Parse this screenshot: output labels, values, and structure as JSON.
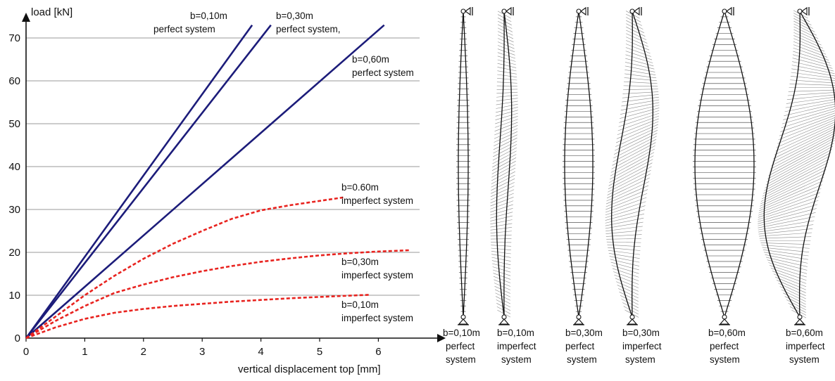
{
  "chart_data": {
    "type": "line",
    "xlabel": "vertical displacement top [mm]",
    "ylabel": "load [kN]",
    "xlim": [
      0,
      6.6
    ],
    "ylim": [
      0,
      75
    ],
    "x_ticks": [
      "0",
      "1",
      "2",
      "3",
      "4",
      "5",
      "6"
    ],
    "y_ticks": [
      "0",
      "10",
      "20",
      "30",
      "40",
      "50",
      "60",
      "70"
    ],
    "grid": "horizontal",
    "colors": {
      "perfect": "#1c1c7a",
      "imperfect": "#e8231f",
      "grid": "#9a9a9a"
    },
    "series": [
      {
        "key": "p010",
        "style": "solid",
        "points": [
          [
            0,
            0
          ],
          [
            3.85,
            73
          ]
        ]
      },
      {
        "key": "p030",
        "style": "solid",
        "points": [
          [
            0,
            0
          ],
          [
            4.17,
            73
          ]
        ]
      },
      {
        "key": "p060",
        "style": "solid",
        "points": [
          [
            0,
            0
          ],
          [
            6.1,
            73
          ]
        ]
      },
      {
        "key": "i060",
        "style": "dashed",
        "points": [
          [
            0,
            0
          ],
          [
            0.5,
            5
          ],
          [
            1.0,
            10
          ],
          [
            1.5,
            14.5
          ],
          [
            2.0,
            18.5
          ],
          [
            2.5,
            22
          ],
          [
            3.0,
            25
          ],
          [
            3.5,
            27.8
          ],
          [
            4.0,
            29.8
          ],
          [
            4.5,
            31
          ],
          [
            5.0,
            32
          ],
          [
            5.4,
            32.8
          ]
        ]
      },
      {
        "key": "i030",
        "style": "dashed",
        "points": [
          [
            0,
            0
          ],
          [
            0.5,
            4
          ],
          [
            1.0,
            7.5
          ],
          [
            1.5,
            10.5
          ],
          [
            2.0,
            12.5
          ],
          [
            2.5,
            14.2
          ],
          [
            3.0,
            15.6
          ],
          [
            3.5,
            16.8
          ],
          [
            4.0,
            17.8
          ],
          [
            4.5,
            18.6
          ],
          [
            5.0,
            19.3
          ],
          [
            5.5,
            19.8
          ],
          [
            6.0,
            20.2
          ],
          [
            6.55,
            20.5
          ]
        ]
      },
      {
        "key": "i010",
        "style": "dashed",
        "points": [
          [
            0,
            0
          ],
          [
            0.5,
            2.5
          ],
          [
            1.0,
            4.5
          ],
          [
            1.5,
            5.9
          ],
          [
            2.0,
            6.8
          ],
          [
            2.5,
            7.5
          ],
          [
            3.0,
            8.0
          ],
          [
            3.5,
            8.5
          ],
          [
            4.0,
            8.9
          ],
          [
            4.5,
            9.3
          ],
          [
            5.0,
            9.6
          ],
          [
            5.5,
            9.9
          ],
          [
            5.85,
            10.1
          ]
        ]
      }
    ],
    "annotations": [
      {
        "lines": [
          "b=0,10m",
          "perfect system"
        ]
      },
      {
        "lines": [
          "b=0,30m",
          "perfect system,"
        ]
      },
      {
        "lines": [
          "b=0,60m",
          "perfect system"
        ]
      },
      {
        "lines": [
          "b=0.60m",
          "imperfect system"
        ]
      },
      {
        "lines": [
          "b=0,30m",
          "imperfect system"
        ]
      },
      {
        "lines": [
          "b=0,10m",
          "imperfect system"
        ]
      }
    ]
  },
  "diagrams": [
    {
      "caption": [
        "b=0,10m",
        "perfect",
        "system"
      ]
    },
    {
      "caption": [
        "b=0,10m",
        "imperfect",
        "system"
      ]
    },
    {
      "caption": [
        "b=0,30m",
        "perfect",
        "system"
      ]
    },
    {
      "caption": [
        "b=0,30m",
        "imperfect",
        "system"
      ]
    },
    {
      "caption": [
        "b=0,60m",
        "perfect",
        "system"
      ]
    },
    {
      "caption": [
        "b=0,60m",
        "imperfect",
        "system"
      ]
    }
  ]
}
